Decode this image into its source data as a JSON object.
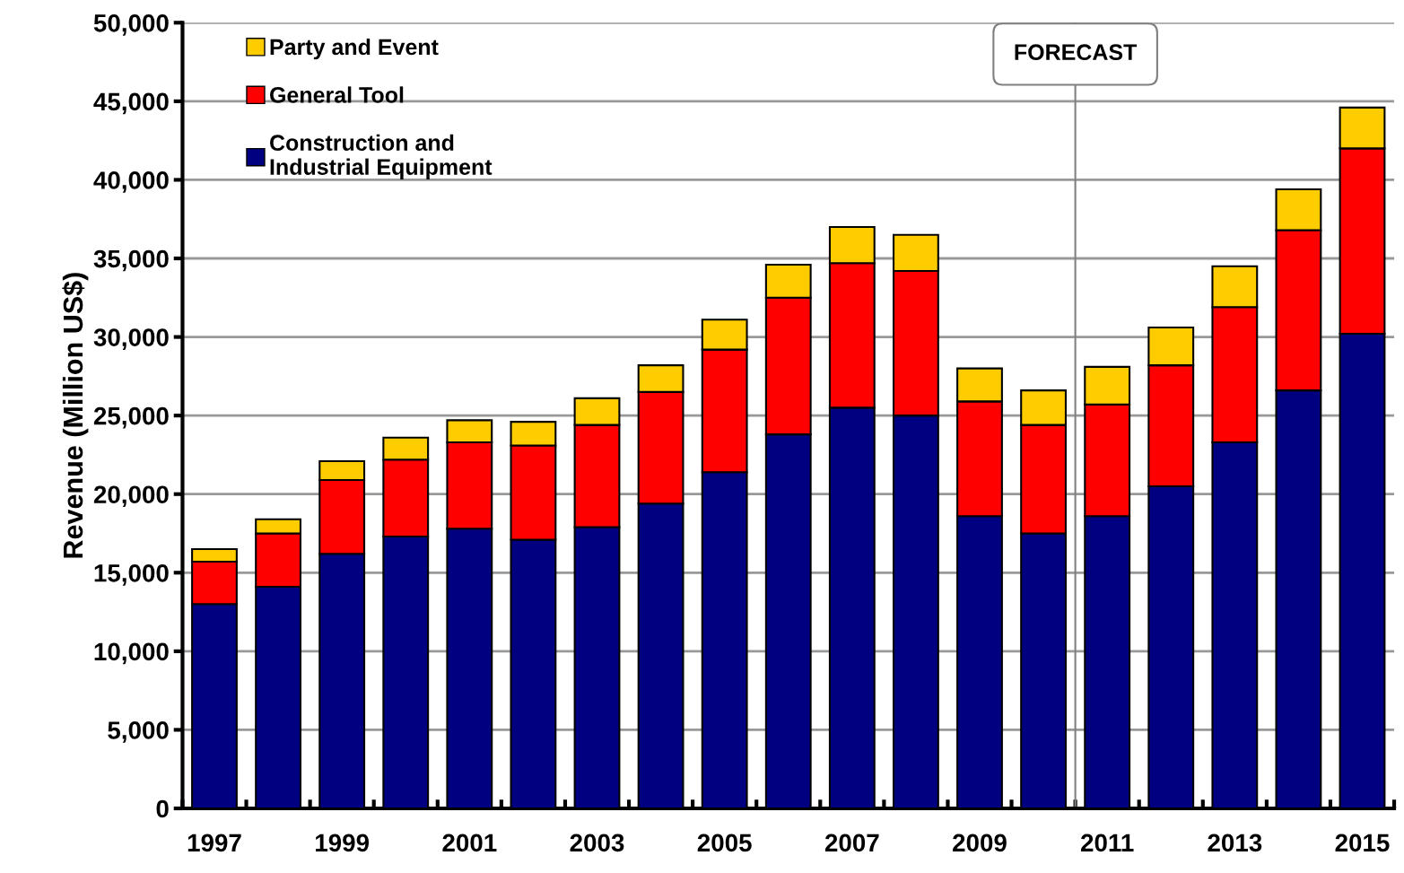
{
  "chart_data": {
    "type": "bar",
    "stacked": true,
    "ylabel": "Revenue (Million US$)",
    "x": [
      1997,
      1998,
      1999,
      2000,
      2001,
      2002,
      2003,
      2004,
      2005,
      2006,
      2007,
      2008,
      2009,
      2010,
      2011,
      2012,
      2013,
      2014,
      2015
    ],
    "xlim": [
      1996.5,
      2015.5
    ],
    "xticks": [
      {
        "value": 1996.5,
        "label": null
      },
      1997,
      {
        "value": 1997.5,
        "label": null
      },
      {
        "value": 1998.5,
        "label": null
      },
      1999,
      {
        "value": 1999.5,
        "label": null
      },
      {
        "value": 2000.5,
        "label": null
      },
      2001,
      {
        "value": 2001.5,
        "label": null
      },
      {
        "value": 2002.5,
        "label": null
      },
      2003,
      {
        "value": 2003.5,
        "label": null
      },
      {
        "value": 2004.5,
        "label": null
      },
      2005,
      {
        "value": 2005.5,
        "label": null
      },
      {
        "value": 2006.5,
        "label": null
      },
      2007,
      {
        "value": 2007.5,
        "label": null
      },
      {
        "value": 2008.5,
        "label": null
      },
      2009,
      {
        "value": 2009.5,
        "label": null
      },
      {
        "value": 2010.5,
        "label": null
      },
      2011,
      {
        "value": 2011.5,
        "label": null
      },
      {
        "value": 2012.5,
        "label": null
      },
      2013,
      {
        "value": 2013.5,
        "label": null
      },
      {
        "value": 2014.5,
        "label": null
      },
      2015,
      {
        "value": 2015.5,
        "label": null
      }
    ],
    "ylim": [
      0,
      50000
    ],
    "yticks": [
      {
        "value": 0,
        "label": "0"
      },
      {
        "value": 5000,
        "label": "5,000"
      },
      {
        "value": 10000,
        "label": "10,000"
      },
      {
        "value": 15000,
        "label": "15,000"
      },
      {
        "value": 20000,
        "label": "20,000"
      },
      {
        "value": 25000,
        "label": "25,000"
      },
      {
        "value": 30000,
        "label": "30,000"
      },
      {
        "value": 35000,
        "label": "35,000"
      },
      {
        "value": 40000,
        "label": "40,000"
      },
      {
        "value": 45000,
        "label": "45,000"
      },
      {
        "value": 50000,
        "label": "50,000"
      }
    ],
    "series": [
      {
        "name": "Construction and\nIndustrial Equipment",
        "color": "#000080",
        "values": [
          13000,
          14100,
          16200,
          17300,
          17800,
          17100,
          17900,
          19400,
          21400,
          23800,
          25500,
          25000,
          18600,
          17500,
          18600,
          20500,
          23300,
          26600,
          30200
        ]
      },
      {
        "name": "General Tool",
        "color": "#ff0000",
        "values": [
          2700,
          3400,
          4700,
          4900,
          5500,
          6000,
          6500,
          7100,
          7800,
          8700,
          9200,
          9200,
          7300,
          6900,
          7100,
          7700,
          8600,
          10200,
          11800
        ]
      },
      {
        "name": "Party and Event",
        "color": "#ffcc00",
        "values": [
          800,
          900,
          1200,
          1400,
          1400,
          1500,
          1700,
          1700,
          1900,
          2100,
          2300,
          2300,
          2100,
          2200,
          2400,
          2400,
          2600,
          2600,
          2600
        ]
      }
    ],
    "ref_lines": [
      {
        "axis": "x",
        "value": 2010.5,
        "label": "FORECAST",
        "color": "#808080"
      }
    ],
    "grid": "y",
    "legend": "top left"
  }
}
